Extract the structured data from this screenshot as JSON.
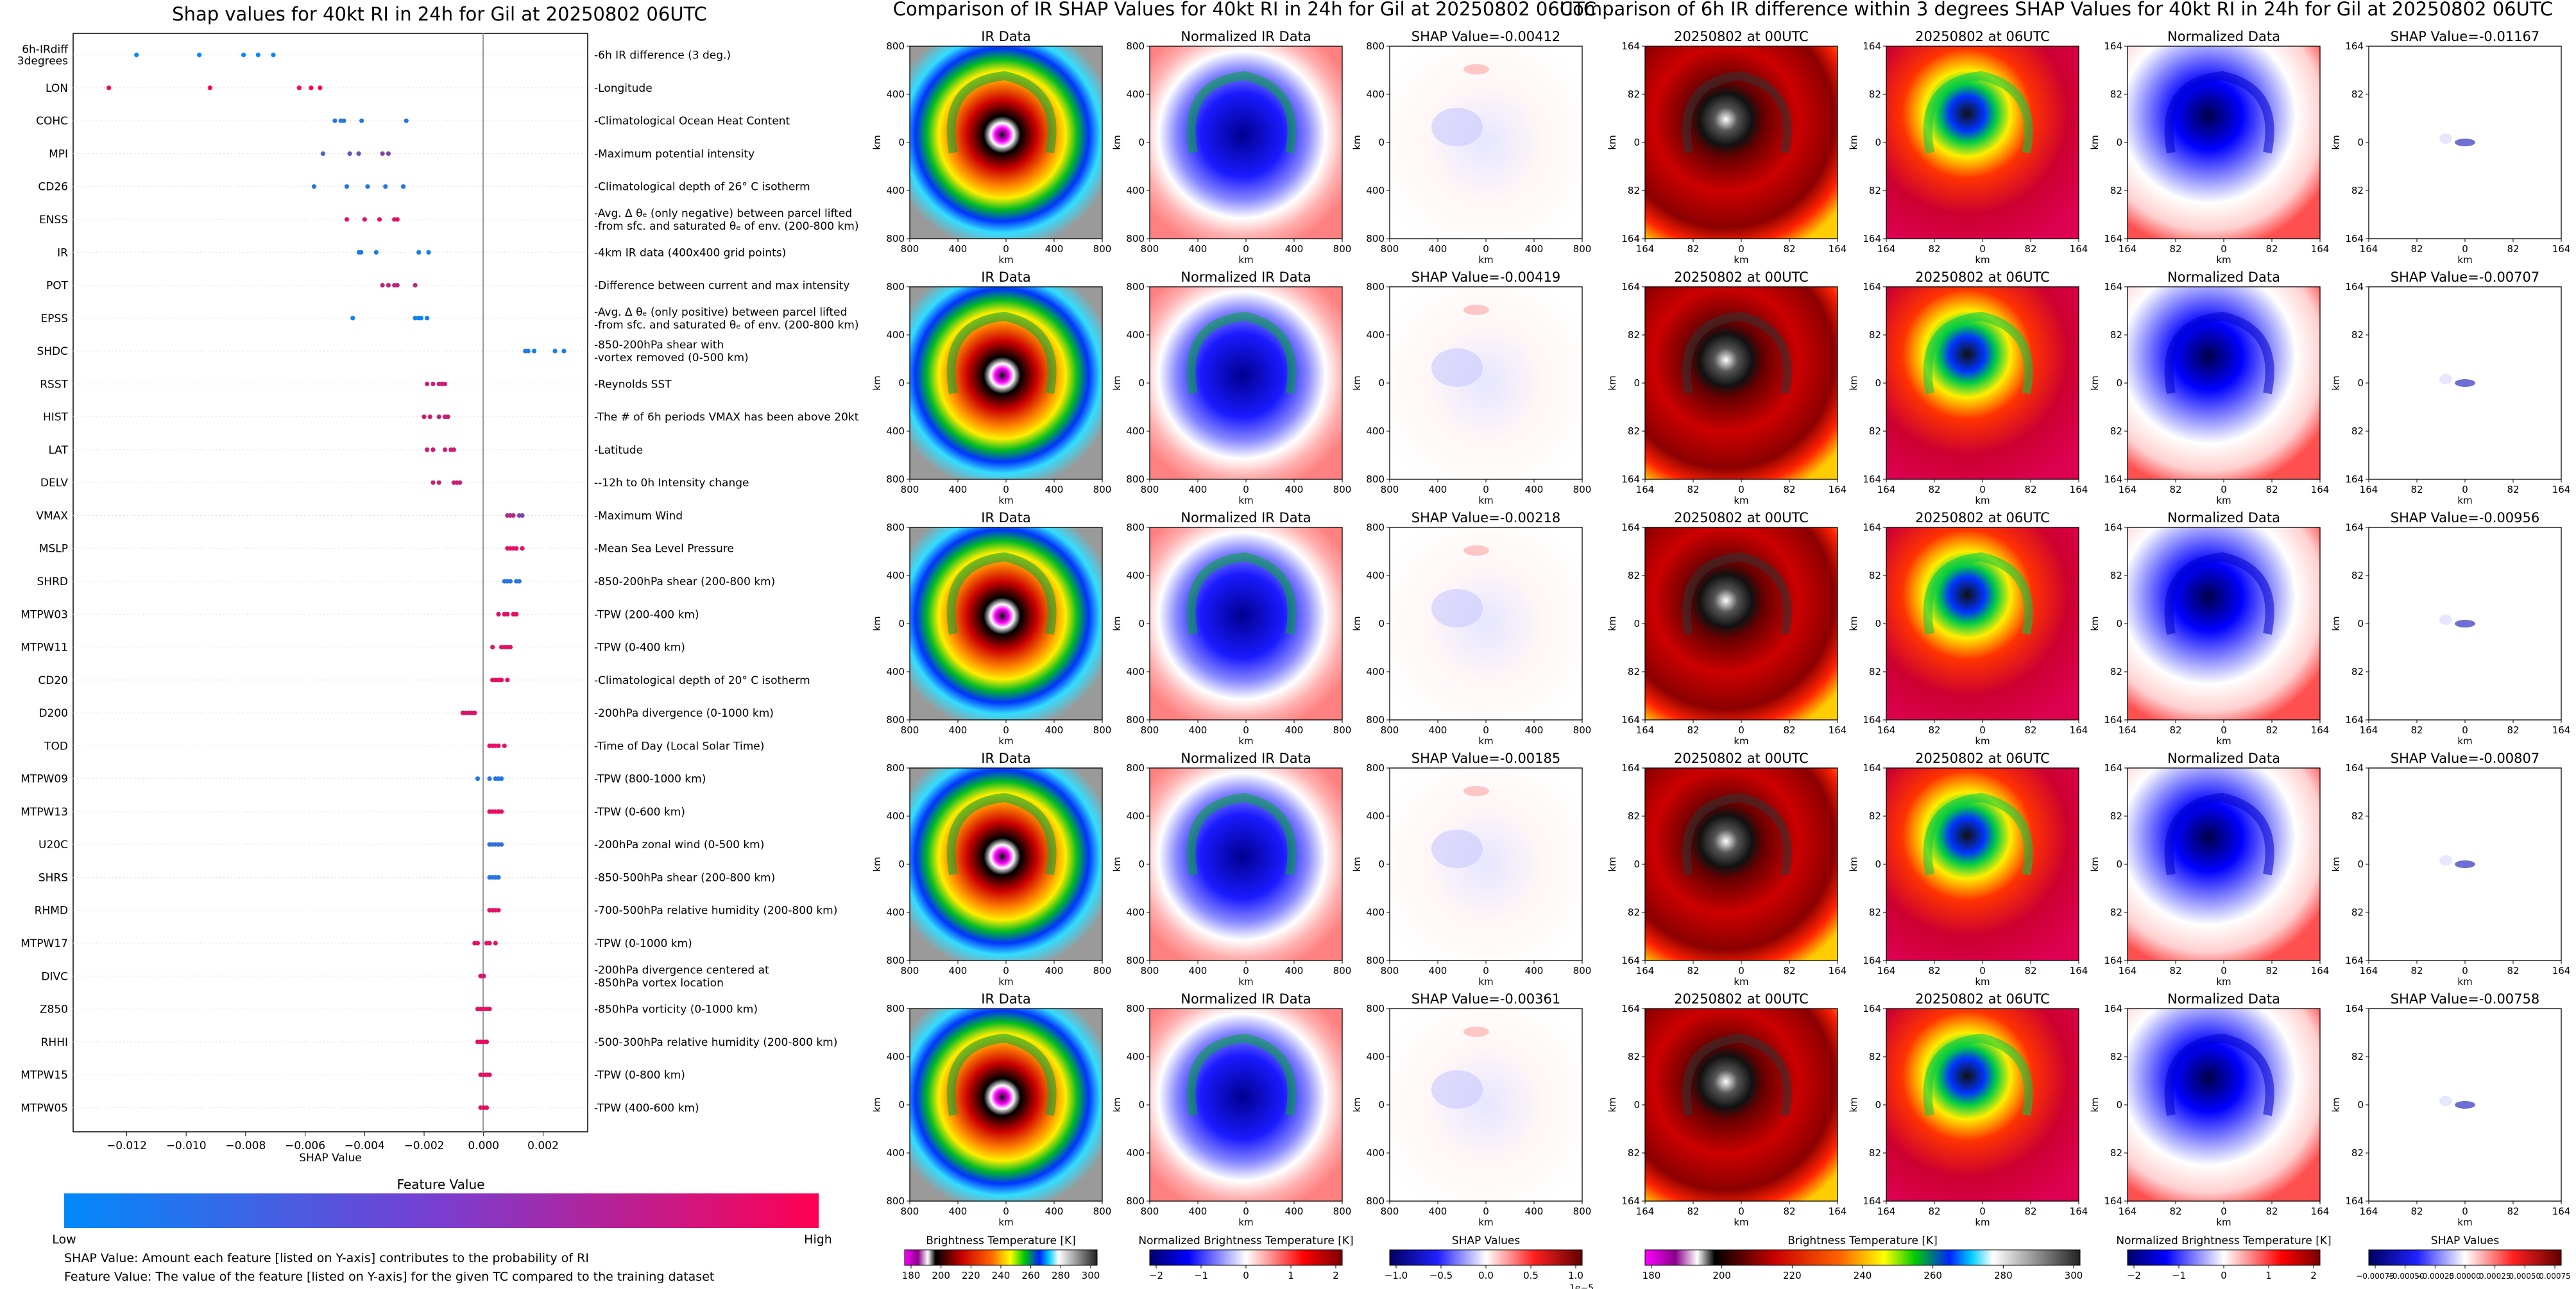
{
  "titles": {
    "left": "Shap values for 40kt RI in 24h for Gil at 20250802 06UTC",
    "middle": "Comparison of IR SHAP Values for 40kt RI in 24h for Gil at 20250802 06UTC",
    "right": "Comparison of 6h IR difference within 3 degrees SHAP Values for 40kt RI in 24h for Gil at 20250802 06UTC"
  },
  "panel_titles": {
    "ir": "IR Data",
    "norm_ir": "Normalized IR Data",
    "t00": "20250802 at 00UTC",
    "t06": "20250802 at 06UTC",
    "norm": "Normalized Data"
  },
  "shap_label_prefix": "SHAP Value=",
  "ir_shap_values": [
    "-0.00412",
    "-0.00419",
    "-0.00218",
    "-0.00185",
    "-0.00361"
  ],
  "diff_shap_values": [
    "-0.01167",
    "-0.00707",
    "-0.00956",
    "-0.00807",
    "-0.00758"
  ],
  "axes_text": {
    "km": "km",
    "ir_ticks_x": [
      "800",
      "400",
      "0",
      "400",
      "800"
    ],
    "ir_ticks_y": [
      "800",
      "400",
      "0",
      "400",
      "800"
    ],
    "diff_ticks": [
      "164",
      "82",
      "0",
      "82",
      "164"
    ]
  },
  "colorbars": {
    "bt": {
      "label": "Brightness Temperature [K]",
      "ticks": [
        "180",
        "200",
        "220",
        "240",
        "260",
        "280",
        "300"
      ]
    },
    "norm_bt": {
      "label": "Normalized Brightness Temperature [K]",
      "ticks": [
        "−2",
        "−1",
        "0",
        "1",
        "2"
      ]
    },
    "shap_ir": {
      "label": "SHAP Values",
      "ticks": [
        "−1.0",
        "−0.5",
        "0.0",
        "0.5",
        "1.0"
      ],
      "exponent": "1e−5"
    },
    "shap_diff": {
      "label": "SHAP Values",
      "ticks": [
        "−0.00075",
        "−0.00050",
        "−0.00025",
        "0.00000",
        "0.00025",
        "0.00050",
        "0.00075"
      ]
    },
    "feature": {
      "label": "Feature Value",
      "low": "Low",
      "high": "High"
    }
  },
  "notes": {
    "shap": "SHAP Value: Amount each feature [listed on Y-axis] contributes to the probability of RI",
    "feature": "Feature Value: The value of the feature [listed on Y-axis] for the given TC compared to the training dataset"
  },
  "colors": {
    "low": "#008afb",
    "high": "#ff0052"
  },
  "chart_data": {
    "type": "scatter",
    "title": "Shap values for 40kt RI in 24h for Gil at 20250802 06UTC",
    "xlabel": "SHAP Value",
    "xlim": [
      -0.0138,
      0.0035
    ],
    "x_ticks": [
      "−0.012",
      "−0.010",
      "−0.008",
      "−0.006",
      "−0.004",
      "−0.002",
      "0.000",
      "0.002"
    ],
    "x_tick_values": [
      -0.012,
      -0.01,
      -0.008,
      -0.006,
      -0.004,
      -0.002,
      0.0,
      0.002
    ],
    "features": [
      {
        "code": "6h-IRdiff\n3degrees",
        "desc": "6h IR difference (3 deg.)",
        "points": [
          [
            -0.01167,
            0.0
          ],
          [
            -0.00956,
            0.0
          ],
          [
            -0.00807,
            0.0
          ],
          [
            -0.00758,
            0.0
          ],
          [
            -0.00707,
            0.0
          ]
        ]
      },
      {
        "code": "LON",
        "desc": "Longitude",
        "points": [
          [
            -0.0126,
            1
          ],
          [
            -0.0092,
            1
          ],
          [
            -0.0062,
            1
          ],
          [
            -0.0058,
            1
          ],
          [
            -0.0055,
            1
          ]
        ]
      },
      {
        "code": "COHC",
        "desc": "Climatological Ocean Heat Content",
        "points": [
          [
            -0.005,
            0.15
          ],
          [
            -0.0048,
            0.15
          ],
          [
            -0.0047,
            0.15
          ],
          [
            -0.0041,
            0.15
          ],
          [
            -0.0026,
            0.15
          ]
        ]
      },
      {
        "code": "MPI",
        "desc": "Maximum potential intensity",
        "points": [
          [
            -0.0054,
            0.3
          ],
          [
            -0.0045,
            0.4
          ],
          [
            -0.0042,
            0.4
          ],
          [
            -0.0034,
            0.5
          ],
          [
            -0.0032,
            0.5
          ]
        ]
      },
      {
        "code": "CD26",
        "desc": "Climatological depth of 26° C isotherm",
        "points": [
          [
            -0.0057,
            0.15
          ],
          [
            -0.0046,
            0.15
          ],
          [
            -0.0039,
            0.15
          ],
          [
            -0.0033,
            0.15
          ],
          [
            -0.0027,
            0.15
          ]
        ]
      },
      {
        "code": "ENSS",
        "desc": "Avg. Δ θₑ (only negative) between parcel lifted\nfrom sfc. and saturated θₑ of env. (200-800 km)",
        "points": [
          [
            -0.0046,
            0.9
          ],
          [
            -0.004,
            0.9
          ],
          [
            -0.0035,
            0.9
          ],
          [
            -0.003,
            0.9
          ],
          [
            -0.0029,
            0.9
          ]
        ]
      },
      {
        "code": "IR",
        "desc": "4km IR data (400x400 grid points)",
        "points": [
          [
            -0.00419,
            0.1
          ],
          [
            -0.00412,
            0.1
          ],
          [
            -0.00361,
            0.1
          ],
          [
            -0.00218,
            0.1
          ],
          [
            -0.00185,
            0.1
          ]
        ]
      },
      {
        "code": "POT",
        "desc": "Difference between current and max intensity",
        "points": [
          [
            -0.0034,
            0.75
          ],
          [
            -0.0032,
            0.75
          ],
          [
            -0.003,
            0.75
          ],
          [
            -0.0029,
            0.75
          ],
          [
            -0.0023,
            0.75
          ]
        ]
      },
      {
        "code": "EPSS",
        "desc": "Avg. Δ θₑ (only positive) between parcel lifted\nfrom sfc. and saturated θₑ of env. (200-800 km)",
        "points": [
          [
            -0.0044,
            0.05
          ],
          [
            -0.0023,
            0.05
          ],
          [
            -0.0022,
            0.05
          ],
          [
            -0.0021,
            0.05
          ],
          [
            -0.0019,
            0.05
          ]
        ]
      },
      {
        "code": "SHDC",
        "desc": "850-200hPa shear with\nvortex removed (0-500 km)",
        "points": [
          [
            0.0014,
            0.1
          ],
          [
            0.0015,
            0.1
          ],
          [
            0.0017,
            0.1
          ],
          [
            0.0024,
            0.1
          ],
          [
            0.0027,
            0.1
          ]
        ]
      },
      {
        "code": "RSST",
        "desc": "Reynolds SST",
        "points": [
          [
            -0.0019,
            0.8
          ],
          [
            -0.0017,
            0.8
          ],
          [
            -0.0015,
            0.8
          ],
          [
            -0.0014,
            0.8
          ],
          [
            -0.0013,
            0.8
          ]
        ]
      },
      {
        "code": "HIST",
        "desc": "The # of 6h periods VMAX has been above 20kt",
        "points": [
          [
            -0.002,
            0.8
          ],
          [
            -0.0018,
            0.8
          ],
          [
            -0.0015,
            0.8
          ],
          [
            -0.0013,
            0.8
          ],
          [
            -0.0012,
            0.8
          ]
        ]
      },
      {
        "code": "LAT",
        "desc": "Latitude",
        "points": [
          [
            -0.0019,
            0.8
          ],
          [
            -0.0017,
            0.8
          ],
          [
            -0.0013,
            0.8
          ],
          [
            -0.0011,
            0.8
          ],
          [
            -0.001,
            0.8
          ]
        ]
      },
      {
        "code": "DELV",
        "desc": "-12h to 0h Intensity change",
        "points": [
          [
            -0.0017,
            0.8
          ],
          [
            -0.0015,
            0.8
          ],
          [
            -0.001,
            0.8
          ],
          [
            -0.0009,
            0.8
          ],
          [
            -0.0008,
            0.8
          ]
        ]
      },
      {
        "code": "VMAX",
        "desc": "Maximum Wind",
        "points": [
          [
            0.0008,
            0.7
          ],
          [
            0.0009,
            0.7
          ],
          [
            0.001,
            0.7
          ],
          [
            0.0012,
            0.5
          ],
          [
            0.0013,
            0.5
          ]
        ]
      },
      {
        "code": "MSLP",
        "desc": "Mean Sea Level Pressure",
        "points": [
          [
            0.0008,
            0.9
          ],
          [
            0.0009,
            0.9
          ],
          [
            0.001,
            0.9
          ],
          [
            0.0011,
            0.9
          ],
          [
            0.0013,
            0.9
          ]
        ]
      },
      {
        "code": "SHRD",
        "desc": "850-200hPa shear (200-800 km)",
        "points": [
          [
            0.0007,
            0.15
          ],
          [
            0.0008,
            0.15
          ],
          [
            0.0009,
            0.15
          ],
          [
            0.0011,
            0.15
          ],
          [
            0.0012,
            0.15
          ]
        ]
      },
      {
        "code": "MTPW03",
        "desc": "TPW (200-400 km)",
        "points": [
          [
            0.0005,
            0.9
          ],
          [
            0.0007,
            0.9
          ],
          [
            0.0008,
            0.9
          ],
          [
            0.001,
            0.9
          ],
          [
            0.0011,
            0.9
          ]
        ]
      },
      {
        "code": "MTPW11",
        "desc": "TPW (0-400 km)",
        "points": [
          [
            0.0003,
            0.9
          ],
          [
            0.0006,
            0.9
          ],
          [
            0.0007,
            0.9
          ],
          [
            0.0008,
            0.9
          ],
          [
            0.0009,
            0.9
          ]
        ]
      },
      {
        "code": "CD20",
        "desc": "Climatological depth of 20° C isotherm",
        "points": [
          [
            0.0003,
            0.9
          ],
          [
            0.0004,
            0.9
          ],
          [
            0.0005,
            0.9
          ],
          [
            0.0006,
            0.9
          ],
          [
            0.0008,
            0.9
          ]
        ]
      },
      {
        "code": "D200",
        "desc": "200hPa divergence (0-1000 km)",
        "points": [
          [
            -0.0007,
            0.85
          ],
          [
            -0.0006,
            0.85
          ],
          [
            -0.0005,
            0.85
          ],
          [
            -0.0004,
            0.85
          ],
          [
            -0.0003,
            0.85
          ]
        ]
      },
      {
        "code": "TOD",
        "desc": "Time of Day (Local Solar Time)",
        "points": [
          [
            0.0002,
            0.9
          ],
          [
            0.0003,
            0.9
          ],
          [
            0.0004,
            0.9
          ],
          [
            0.0005,
            0.9
          ],
          [
            0.0007,
            0.9
          ]
        ]
      },
      {
        "code": "MTPW09",
        "desc": "TPW (800-1000 km)",
        "points": [
          [
            -0.0002,
            0.15
          ],
          [
            0.0002,
            0.15
          ],
          [
            0.0004,
            0.15
          ],
          [
            0.0005,
            0.15
          ],
          [
            0.0006,
            0.15
          ]
        ]
      },
      {
        "code": "MTPW13",
        "desc": "TPW (0-600 km)",
        "points": [
          [
            0.0002,
            0.9
          ],
          [
            0.0003,
            0.9
          ],
          [
            0.0004,
            0.9
          ],
          [
            0.0005,
            0.9
          ],
          [
            0.0006,
            0.9
          ]
        ]
      },
      {
        "code": "U20C",
        "desc": "200hPa zonal wind (0-500 km)",
        "points": [
          [
            0.0002,
            0.2
          ],
          [
            0.0003,
            0.2
          ],
          [
            0.0004,
            0.2
          ],
          [
            0.0005,
            0.2
          ],
          [
            0.0006,
            0.2
          ]
        ]
      },
      {
        "code": "SHRS",
        "desc": "850-500hPa shear (200-800 km)",
        "points": [
          [
            0.0002,
            0.15
          ],
          [
            0.0003,
            0.15
          ],
          [
            0.0004,
            0.15
          ],
          [
            0.0004,
            0.15
          ],
          [
            0.0005,
            0.15
          ]
        ]
      },
      {
        "code": "RHMD",
        "desc": "700-500hPa relative humidity (200-800 km)",
        "points": [
          [
            0.0002,
            0.9
          ],
          [
            0.0003,
            0.9
          ],
          [
            0.0003,
            0.9
          ],
          [
            0.0004,
            0.9
          ],
          [
            0.0005,
            0.9
          ]
        ]
      },
      {
        "code": "MTPW17",
        "desc": "TPW (0-1000 km)",
        "points": [
          [
            -0.0003,
            0.9
          ],
          [
            -0.0002,
            0.9
          ],
          [
            0.0001,
            0.9
          ],
          [
            0.0002,
            0.9
          ],
          [
            0.0004,
            0.9
          ]
        ]
      },
      {
        "code": "DIVC",
        "desc": "200hPa divergence centered at\n850hPa vortex location",
        "points": [
          [
            -0.0001,
            0.85
          ],
          [
            -0.0001,
            0.85
          ],
          [
            0.0,
            0.85
          ],
          [
            0.0,
            0.85
          ],
          [
            0.0,
            0.85
          ]
        ]
      },
      {
        "code": "Z850",
        "desc": "850hPa vorticity (0-1000 km)",
        "points": [
          [
            -0.0002,
            0.9
          ],
          [
            -0.0001,
            0.9
          ],
          [
            0.0,
            0.9
          ],
          [
            0.0001,
            0.9
          ],
          [
            0.0002,
            0.9
          ]
        ]
      },
      {
        "code": "RHHI",
        "desc": "500-300hPa relative humidity (200-800 km)",
        "points": [
          [
            -0.0002,
            0.9
          ],
          [
            -0.0001,
            0.9
          ],
          [
            0.0,
            0.9
          ],
          [
            0.0001,
            0.9
          ],
          [
            0.0001,
            0.9
          ]
        ]
      },
      {
        "code": "MTPW15",
        "desc": "TPW (0-800 km)",
        "points": [
          [
            -0.0001,
            0.9
          ],
          [
            0.0,
            0.9
          ],
          [
            0.0001,
            0.9
          ],
          [
            0.0001,
            0.9
          ],
          [
            0.0002,
            0.9
          ]
        ]
      },
      {
        "code": "MTPW05",
        "desc": "TPW (400-600 km)",
        "points": [
          [
            -0.0001,
            0.9
          ],
          [
            0.0,
            0.9
          ],
          [
            0.0,
            0.9
          ],
          [
            0.0001,
            0.9
          ],
          [
            0.0001,
            0.9
          ]
        ]
      }
    ]
  }
}
